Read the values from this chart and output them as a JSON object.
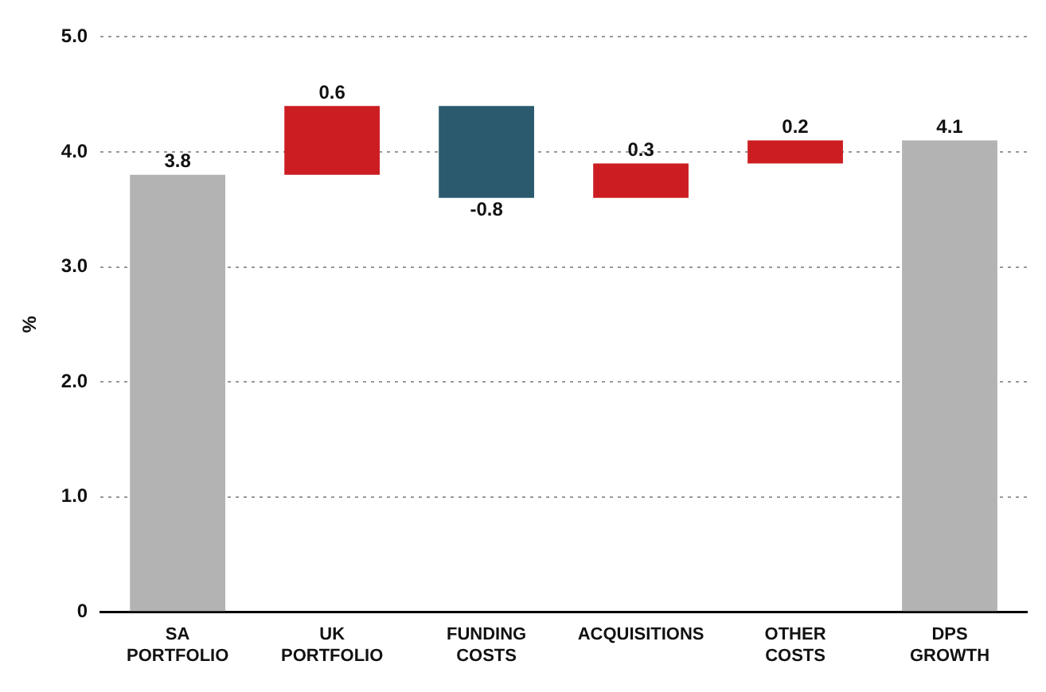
{
  "chart_data": {
    "type": "bar",
    "ylabel": "%",
    "categories": [
      "SA PORTFOLIO",
      "UK PORTFOLIO",
      "FUNDING COSTS",
      "ACQUISITIONS",
      "OTHER COSTS",
      "DPS GROWTH"
    ],
    "values": [
      3.8,
      0.6,
      -0.8,
      0.3,
      0.2,
      4.1
    ],
    "base": [
      0,
      3.8,
      4.4,
      3.6,
      3.9,
      0
    ],
    "colors": [
      "#b3b3b3",
      "#cc1e22",
      "#2b5a6e",
      "#cc1e22",
      "#cc1e22",
      "#b3b3b3"
    ],
    "ylim": [
      0,
      5
    ],
    "yticks": [
      0,
      {
        "value": 1,
        "label": "1.0"
      },
      {
        "value": 2,
        "label": "2.0"
      },
      {
        "value": 3,
        "label": "3.0"
      },
      {
        "value": 4,
        "label": "4.0"
      },
      {
        "value": 5,
        "label": "5.0"
      }
    ],
    "grid": "y",
    "data_labels": true,
    "legend": false
  }
}
